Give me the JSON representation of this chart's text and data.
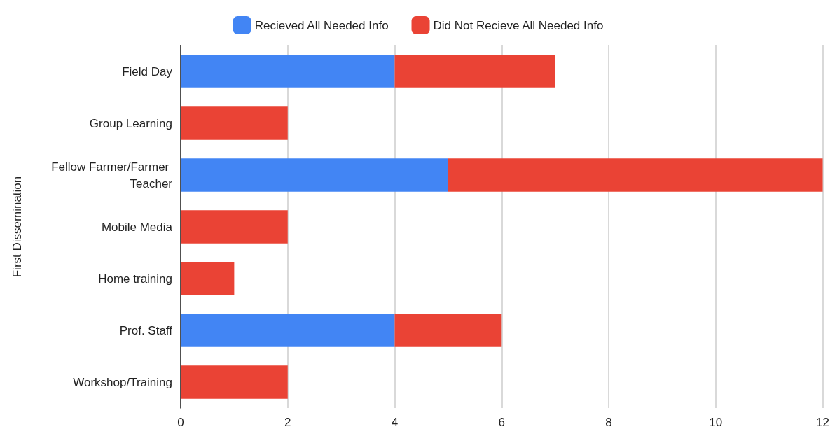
{
  "chart_data": {
    "type": "bar",
    "orientation": "horizontal",
    "stacked": true,
    "categories": [
      "Field Day",
      "Group Learning",
      "Fellow Farmer/Farmer Teacher",
      "Mobile Media",
      "Home training",
      "Prof. Staff",
      "Workshop/Training"
    ],
    "series": [
      {
        "name": "Recieved All Needed Info",
        "color": "#4285f4",
        "values": [
          4,
          0,
          5,
          0,
          0,
          4,
          0
        ]
      },
      {
        "name": "Did Not Recieve All Needed Info",
        "color": "#ea4335",
        "values": [
          3,
          2,
          7,
          2,
          1,
          2,
          2
        ]
      }
    ],
    "ylabel": "First Dissemination",
    "xlim": [
      0,
      12
    ],
    "xticks": [
      0,
      2,
      4,
      6,
      8,
      10,
      12
    ],
    "grid": "x",
    "legend": "top"
  }
}
